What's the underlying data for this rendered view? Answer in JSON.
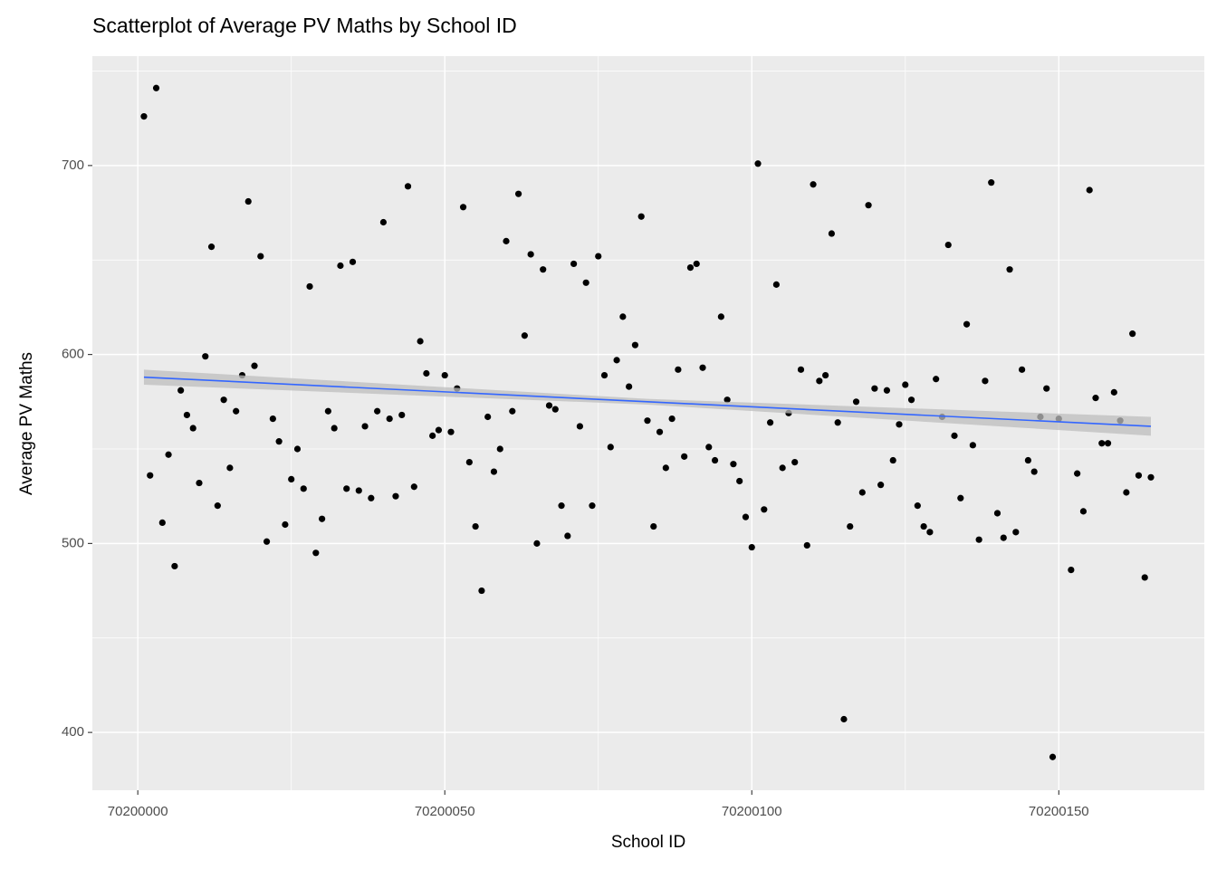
{
  "chart_data": {
    "type": "scatter",
    "title": "Scatterplot of Average PV Maths by School ID",
    "x_label": "School ID",
    "y_label": "Average PV Maths",
    "x": [
      70200001,
      70200002,
      70200003,
      70200004,
      70200005,
      70200006,
      70200007,
      70200008,
      70200009,
      70200010,
      70200011,
      70200012,
      70200013,
      70200014,
      70200015,
      70200016,
      70200017,
      70200018,
      70200019,
      70200020,
      70200021,
      70200022,
      70200023,
      70200024,
      70200025,
      70200026,
      70200027,
      70200028,
      70200029,
      70200030,
      70200031,
      70200032,
      70200033,
      70200034,
      70200035,
      70200036,
      70200037,
      70200038,
      70200039,
      70200040,
      70200041,
      70200042,
      70200043,
      70200044,
      70200045,
      70200046,
      70200047,
      70200048,
      70200049,
      70200050,
      70200051,
      70200052,
      70200053,
      70200054,
      70200055,
      70200056,
      70200057,
      70200058,
      70200059,
      70200060,
      70200061,
      70200062,
      70200063,
      70200064,
      70200065,
      70200066,
      70200067,
      70200068,
      70200069,
      70200070,
      70200071,
      70200072,
      70200073,
      70200074,
      70200075,
      70200076,
      70200077,
      70200078,
      70200079,
      70200080,
      70200081,
      70200082,
      70200083,
      70200084,
      70200085,
      70200086,
      70200087,
      70200088,
      70200089,
      70200090,
      70200091,
      70200092,
      70200093,
      70200094,
      70200095,
      70200096,
      70200097,
      70200098,
      70200099,
      70200100,
      70200101,
      70200102,
      70200103,
      70200104,
      70200105,
      70200106,
      70200107,
      70200108,
      70200109,
      70200110,
      70200111,
      70200112,
      70200113,
      70200114,
      70200115,
      70200116,
      70200117,
      70200118,
      70200119,
      70200120,
      70200121,
      70200122,
      70200123,
      70200124,
      70200125,
      70200126,
      70200127,
      70200128,
      70200129,
      70200130,
      70200131,
      70200132,
      70200133,
      70200134,
      70200135,
      70200136,
      70200137,
      70200138,
      70200139,
      70200140,
      70200141,
      70200142,
      70200143,
      70200144,
      70200145,
      70200146,
      70200147,
      70200148,
      70200149,
      70200150,
      70200152,
      70200153,
      70200154,
      70200155,
      70200156,
      70200157,
      70200158,
      70200159,
      70200160,
      70200161,
      70200162,
      70200163,
      70200164,
      70200165
    ],
    "values": [
      726,
      536,
      741,
      511,
      547,
      488,
      581,
      568,
      561,
      532,
      599,
      657,
      520,
      576,
      540,
      570,
      589,
      681,
      594,
      652,
      501,
      566,
      554,
      510,
      534,
      550,
      529,
      636,
      495,
      513,
      570,
      561,
      647,
      529,
      649,
      528,
      562,
      524,
      570,
      670,
      566,
      525,
      568,
      689,
      530,
      607,
      590,
      557,
      560,
      589,
      559,
      582,
      678,
      543,
      509,
      475,
      567,
      538,
      550,
      660,
      570,
      685,
      610,
      653,
      500,
      645,
      573,
      571,
      520,
      504,
      648,
      562,
      638,
      520,
      652,
      589,
      551,
      597,
      620,
      583,
      605,
      673,
      565,
      509,
      559,
      540,
      566,
      592,
      546,
      646,
      648,
      593,
      551,
      544,
      620,
      576,
      542,
      533,
      514,
      498,
      701,
      518,
      564,
      637,
      540,
      569,
      543,
      592,
      499,
      690,
      586,
      589,
      664,
      564,
      407,
      509,
      575,
      527,
      679,
      582,
      531,
      581,
      544,
      563,
      584,
      576,
      520,
      509,
      506,
      587,
      567,
      658,
      557,
      524,
      616,
      552,
      502,
      586,
      691,
      516,
      503,
      645,
      506,
      592,
      544,
      538,
      567,
      582,
      387,
      566,
      486,
      537,
      517,
      687,
      577,
      553,
      553,
      580,
      565,
      527,
      611,
      536,
      482,
      535
    ],
    "color": "#000000",
    "fit": {
      "color": "#3366FF",
      "band_color": "#BEBEBE",
      "x": [
        70200001,
        70200083,
        70200165
      ],
      "y": [
        588,
        575,
        562
      ],
      "lower": [
        584,
        573.5,
        557
      ],
      "upper": [
        592,
        576.5,
        567
      ]
    },
    "xlim": [
      70199992.6,
      70200173.7
    ],
    "ylim": [
      369.4,
      757.9
    ],
    "xticks": [
      70200000,
      70200050,
      70200100,
      70200150
    ],
    "yticks": [
      400,
      500,
      600,
      700
    ],
    "x_minor_ticks": [
      70200025,
      70200075,
      70200125
    ],
    "y_minor_ticks": [
      450,
      550,
      650,
      750
    ],
    "grid": true
  }
}
